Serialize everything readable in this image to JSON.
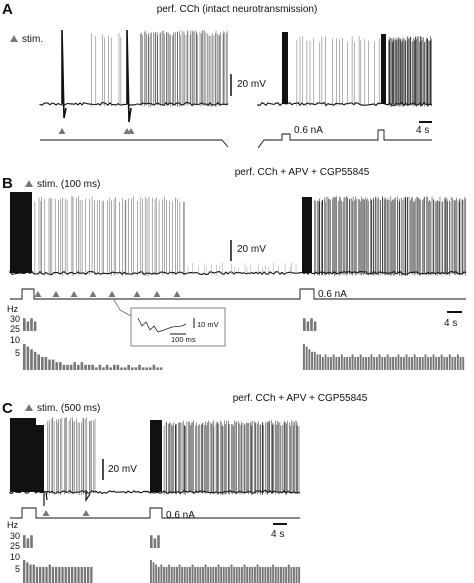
{
  "chart_data": [
    {
      "panel": "A",
      "type": "line",
      "title": "perf.  CCh (intact neurotransmission)",
      "legend": "stim.",
      "scalebars": {
        "voltage": "20 mV",
        "time": "4 s"
      },
      "current_label": "0.6 nA",
      "stim_markers": 3,
      "segments": [
        {
          "name": "left trace",
          "burst_start": 0.26,
          "burst_end": 1.0,
          "sparse_spikes": 9
        },
        {
          "name": "right trace",
          "burst_start": 0.58,
          "burst_end": 1.0,
          "sparse_spikes": 22
        }
      ]
    },
    {
      "panel": "B",
      "type": "line",
      "title": "perf.  CCh + APV + CGP55845",
      "legend": "stim. (100 ms)",
      "scalebars": {
        "voltage": "20 mV",
        "time": "4 s"
      },
      "current_label": "0.6 nA",
      "stim_markers": 8,
      "inset": {
        "voltage": "10 mV",
        "time": "100 ms"
      },
      "rate_plot": {
        "ylabel": "Hz",
        "yticks_upper": [
          "30",
          "25"
        ],
        "yticks_lower": [
          "10",
          "5"
        ],
        "left_bins_upper": [
          29,
          28,
          29,
          28
        ],
        "left_bins_lower": [
          10,
          9,
          8,
          7,
          6,
          5,
          5,
          4,
          4,
          3,
          3,
          2,
          2,
          2,
          3,
          2,
          3,
          2,
          2,
          2,
          1,
          2,
          1,
          2,
          1,
          2,
          2,
          1,
          1,
          2,
          1,
          1,
          2,
          1,
          1,
          1,
          2,
          1,
          1
        ],
        "right_bins_upper": [
          29,
          28,
          29,
          28
        ],
        "right_bins_lower": [
          10,
          9,
          8,
          7,
          7,
          6,
          6,
          5,
          6,
          5,
          5,
          6,
          5,
          5,
          6,
          5,
          5,
          5,
          6,
          5,
          5,
          6,
          5,
          5,
          5,
          6,
          5,
          5,
          6,
          5,
          5,
          6,
          5,
          5,
          5,
          6,
          5,
          5,
          6,
          5,
          5,
          6,
          5,
          5,
          5,
          6,
          5,
          5,
          6,
          5,
          5,
          6,
          5,
          5,
          6,
          5,
          5,
          6,
          5,
          5
        ]
      }
    },
    {
      "panel": "C",
      "type": "line",
      "title": "perf.  CCh + APV + CGP55845",
      "legend": "stim. (500 ms)",
      "scalebars": {
        "voltage": "20 mV",
        "time": "4 s"
      },
      "current_label": "0.6 nA",
      "stim_markers": 2,
      "rate_plot": {
        "ylabel": "Hz",
        "yticks_upper": [
          "30",
          "25"
        ],
        "yticks_lower": [
          "10",
          "5"
        ],
        "left_bins_upper": [
          29,
          28,
          29
        ],
        "left_bins_lower": [
          10,
          9,
          8,
          8,
          7,
          7,
          7,
          7,
          8,
          7,
          7,
          7,
          7,
          7,
          7,
          7,
          7,
          7,
          7,
          7,
          7,
          7
        ],
        "right_bins_upper": [
          29,
          28,
          29
        ],
        "right_bins_lower": [
          10,
          9,
          8,
          7,
          8,
          7,
          7,
          8,
          7,
          7,
          7,
          8,
          7,
          7,
          7,
          7,
          8,
          7,
          7,
          7,
          7,
          8,
          7,
          7,
          7,
          7,
          8,
          7,
          7,
          7,
          7,
          8,
          7,
          7,
          7,
          7,
          8,
          7,
          7,
          7,
          7,
          8,
          7,
          7,
          7,
          7,
          7,
          8,
          7,
          7,
          7,
          7,
          7,
          8,
          7,
          7,
          7,
          7
        ]
      }
    }
  ],
  "panels": {
    "A": {
      "letter": "A"
    },
    "B": {
      "letter": "B"
    },
    "C": {
      "letter": "C"
    }
  }
}
